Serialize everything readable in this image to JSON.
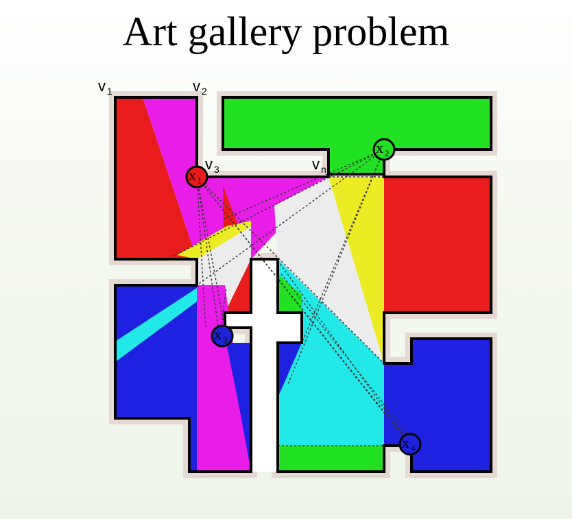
{
  "title": "Art gallery problem",
  "vertices": [
    {
      "name": "v",
      "sub": "1"
    },
    {
      "name": "v",
      "sub": "2"
    },
    {
      "name": "v",
      "sub": "3"
    },
    {
      "name": "v",
      "sub": "n"
    }
  ],
  "guards": [
    {
      "name": "x",
      "sub": "1",
      "color": "#e81c1c"
    },
    {
      "name": "x",
      "sub": "2",
      "color": "#22e022"
    },
    {
      "name": "x",
      "sub": "3",
      "color": "#1e22d8"
    },
    {
      "name": "x",
      "sub": "4",
      "color": "#1e22d8"
    }
  ],
  "colors": {
    "red": "#e81c1c",
    "magenta": "#e81ee8",
    "green": "#22e022",
    "blue": "#1e22e0",
    "cyan": "#22e8e8",
    "yellow": "#ecec24",
    "white": "#ececec",
    "wall": "#000000",
    "halo": "#e6d8d2"
  }
}
